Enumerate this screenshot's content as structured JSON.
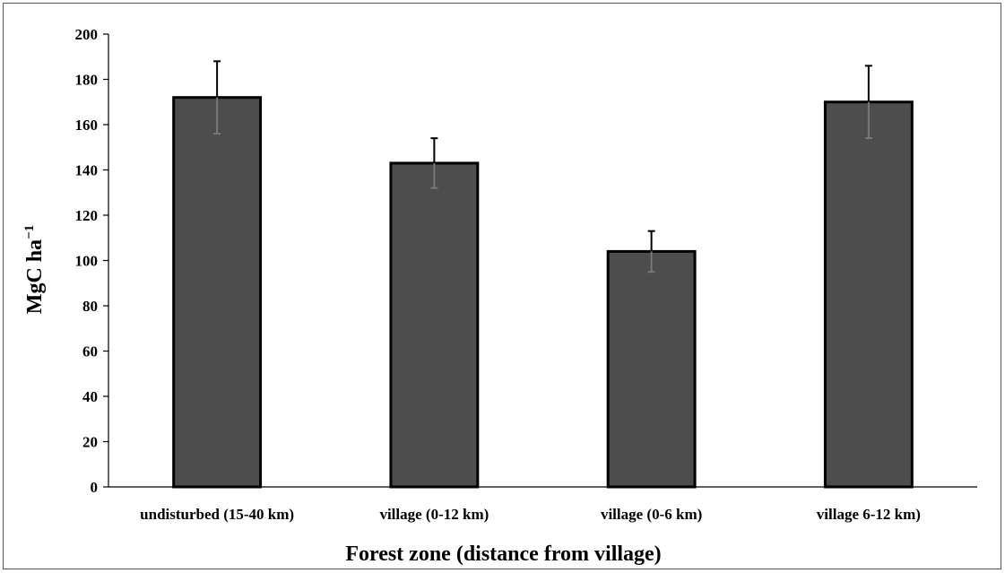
{
  "chart_data": {
    "type": "bar",
    "categories": [
      "undisturbed (15-40 km)",
      "village (0-12 km)",
      "village (0-6 km)",
      "village 6-12 km)"
    ],
    "values": [
      172,
      143,
      104,
      170
    ],
    "errors": [
      16,
      11,
      9,
      16
    ],
    "title": "",
    "xlabel": "Forest zone (distance from village)",
    "ylabel": {
      "base": "MgC ha",
      "superscript": "−1"
    },
    "ylim": [
      0,
      200
    ],
    "yticks": [
      0,
      20,
      40,
      60,
      80,
      100,
      120,
      140,
      160,
      180,
      200
    ],
    "grid": false,
    "legend": "none",
    "colors": {
      "bar_fill": "#4d4d4d",
      "bar_edge": "#000000",
      "error_upper": "#000000",
      "error_lower": "#777777"
    }
  }
}
